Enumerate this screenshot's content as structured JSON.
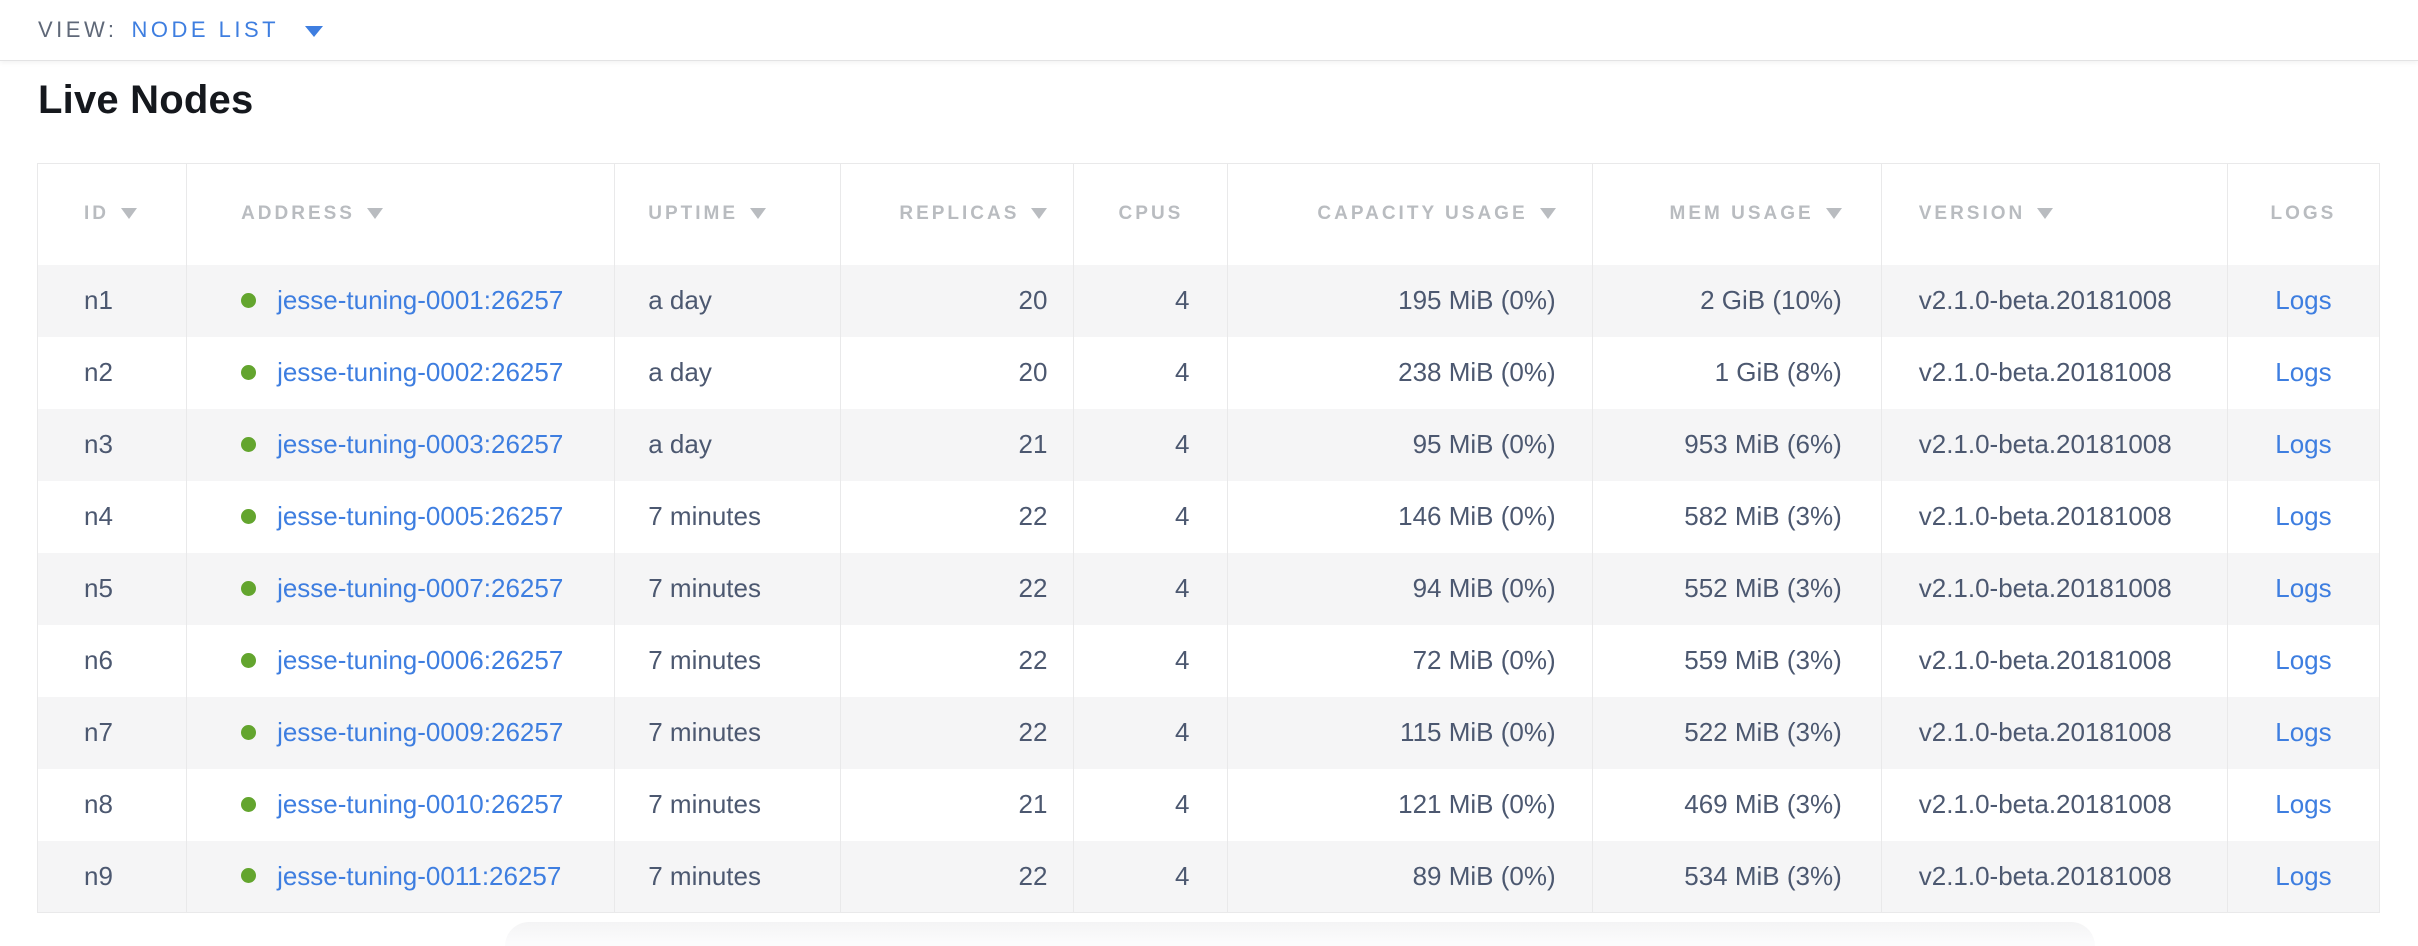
{
  "topbar": {
    "view_label": "VIEW:",
    "view_value": "NODE LIST"
  },
  "section": {
    "title": "Live Nodes"
  },
  "table": {
    "columns": [
      {
        "key": "id",
        "label": "ID",
        "sortable": true,
        "align": "left"
      },
      {
        "key": "address",
        "label": "ADDRESS",
        "sortable": true,
        "align": "left",
        "type": "address"
      },
      {
        "key": "uptime",
        "label": "UPTIME",
        "sortable": true,
        "align": "left"
      },
      {
        "key": "replicas",
        "label": "REPLICAS",
        "sortable": true,
        "align": "right"
      },
      {
        "key": "cpus",
        "label": "CPUS",
        "sortable": false,
        "align": "right",
        "header_align": "center"
      },
      {
        "key": "capacity",
        "label": "CAPACITY USAGE",
        "sortable": true,
        "align": "right"
      },
      {
        "key": "mem",
        "label": "MEM USAGE",
        "sortable": true,
        "align": "right"
      },
      {
        "key": "version",
        "label": "VERSION",
        "sortable": true,
        "align": "left"
      },
      {
        "key": "logs",
        "label": "LOGS",
        "sortable": false,
        "align": "center",
        "type": "link"
      }
    ],
    "rows": [
      {
        "id": "n1",
        "status": "live",
        "address": "jesse-tuning-0001:26257",
        "uptime": "a day",
        "replicas": "20",
        "cpus": "4",
        "capacity": "195 MiB (0%)",
        "mem": "2 GiB (10%)",
        "version": "v2.1.0-beta.20181008",
        "logs": "Logs"
      },
      {
        "id": "n2",
        "status": "live",
        "address": "jesse-tuning-0002:26257",
        "uptime": "a day",
        "replicas": "20",
        "cpus": "4",
        "capacity": "238 MiB (0%)",
        "mem": "1 GiB (8%)",
        "version": "v2.1.0-beta.20181008",
        "logs": "Logs"
      },
      {
        "id": "n3",
        "status": "live",
        "address": "jesse-tuning-0003:26257",
        "uptime": "a day",
        "replicas": "21",
        "cpus": "4",
        "capacity": "95 MiB (0%)",
        "mem": "953 MiB (6%)",
        "version": "v2.1.0-beta.20181008",
        "logs": "Logs"
      },
      {
        "id": "n4",
        "status": "live",
        "address": "jesse-tuning-0005:26257",
        "uptime": "7 minutes",
        "replicas": "22",
        "cpus": "4",
        "capacity": "146 MiB (0%)",
        "mem": "582 MiB (3%)",
        "version": "v2.1.0-beta.20181008",
        "logs": "Logs"
      },
      {
        "id": "n5",
        "status": "live",
        "address": "jesse-tuning-0007:26257",
        "uptime": "7 minutes",
        "replicas": "22",
        "cpus": "4",
        "capacity": "94 MiB (0%)",
        "mem": "552 MiB (3%)",
        "version": "v2.1.0-beta.20181008",
        "logs": "Logs"
      },
      {
        "id": "n6",
        "status": "live",
        "address": "jesse-tuning-0006:26257",
        "uptime": "7 minutes",
        "replicas": "22",
        "cpus": "4",
        "capacity": "72 MiB (0%)",
        "mem": "559 MiB (3%)",
        "version": "v2.1.0-beta.20181008",
        "logs": "Logs"
      },
      {
        "id": "n7",
        "status": "live",
        "address": "jesse-tuning-0009:26257",
        "uptime": "7 minutes",
        "replicas": "22",
        "cpus": "4",
        "capacity": "115 MiB (0%)",
        "mem": "522 MiB (3%)",
        "version": "v2.1.0-beta.20181008",
        "logs": "Logs"
      },
      {
        "id": "n8",
        "status": "live",
        "address": "jesse-tuning-0010:26257",
        "uptime": "7 minutes",
        "replicas": "21",
        "cpus": "4",
        "capacity": "121 MiB (0%)",
        "mem": "469 MiB (3%)",
        "version": "v2.1.0-beta.20181008",
        "logs": "Logs"
      },
      {
        "id": "n9",
        "status": "live",
        "address": "jesse-tuning-0011:26257",
        "uptime": "7 minutes",
        "replicas": "22",
        "cpus": "4",
        "capacity": "89 MiB (0%)",
        "mem": "534 MiB (3%)",
        "version": "v2.1.0-beta.20181008",
        "logs": "Logs"
      }
    ]
  },
  "colors": {
    "accent_blue": "#3e7ee0",
    "status_green": "#63a52e",
    "header_gray": "#b9bcc0",
    "text_slate": "#4c5870",
    "row_alt_bg": "#f5f5f6",
    "border_gray": "#e9e9ea",
    "title_color": "#15181d",
    "view_label_gray": "#5f6878"
  }
}
